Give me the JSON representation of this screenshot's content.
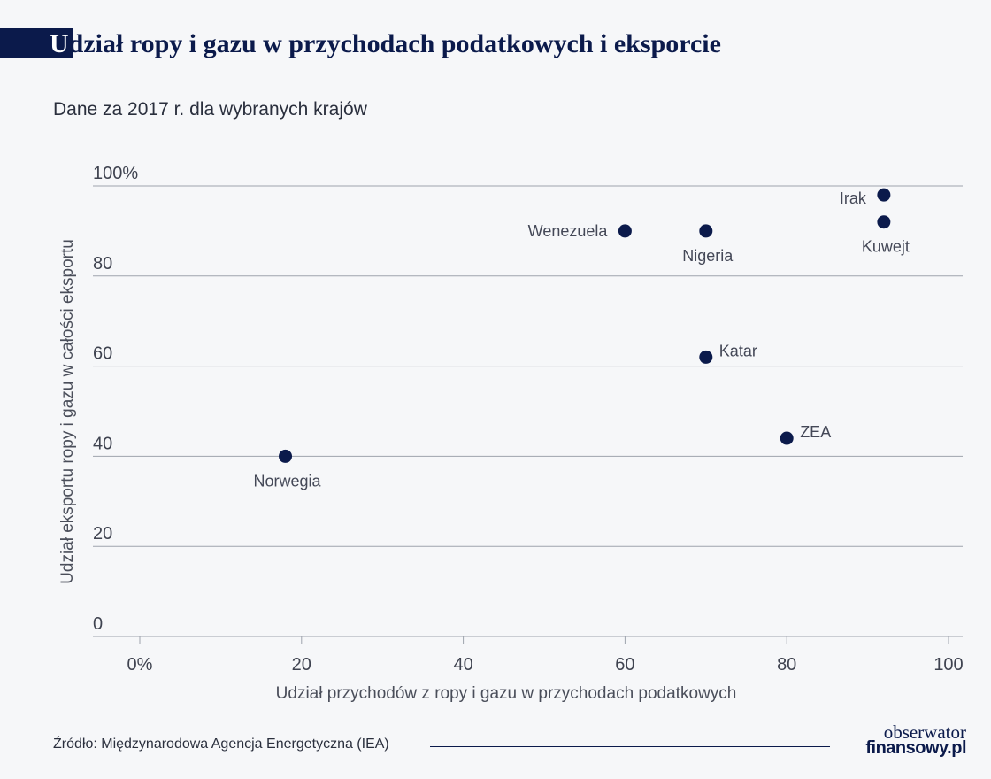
{
  "header": {
    "title_first": "U",
    "title_rest": "dział ropy i gazu w przychodach podatkowych i eksporcie",
    "subtitle": "Dane za 2017 r. dla wybranych krajów"
  },
  "chart_data": {
    "type": "scatter",
    "title": "Udział ropy i gazu w przychodach podatkowych i eksporcie",
    "subtitle": "Dane za 2017 r. dla wybranych krajów",
    "xlabel": "Udział przychodów z ropy i gazu w przychodach podatkowych",
    "ylabel": "Udział eksportu ropy i gazu w całości eksportu",
    "xlim": [
      0,
      100
    ],
    "ylim": [
      0,
      100
    ],
    "grid": "horizontal",
    "x_ticks": [
      {
        "value": 0,
        "label": "0%"
      },
      {
        "value": 20,
        "label": "20"
      },
      {
        "value": 40,
        "label": "40"
      },
      {
        "value": 60,
        "label": "60"
      },
      {
        "value": 80,
        "label": "80"
      },
      {
        "value": 100,
        "label": "100"
      }
    ],
    "y_ticks": [
      {
        "value": 0,
        "label": "0"
      },
      {
        "value": 20,
        "label": "20"
      },
      {
        "value": 40,
        "label": "40"
      },
      {
        "value": 60,
        "label": "60"
      },
      {
        "value": 80,
        "label": "80"
      },
      {
        "value": 100,
        "label": "100%"
      }
    ],
    "points": [
      {
        "label": "Irak",
        "x": 92,
        "y": 98,
        "label_pos": "left"
      },
      {
        "label": "Kuwejt",
        "x": 92,
        "y": 92,
        "label_pos": "below"
      },
      {
        "label": "Wenezuela",
        "x": 60,
        "y": 90,
        "label_pos": "left"
      },
      {
        "label": "Nigeria",
        "x": 70,
        "y": 90,
        "label_pos": "below"
      },
      {
        "label": "Katar",
        "x": 70,
        "y": 62,
        "label_pos": "right"
      },
      {
        "label": "ZEA",
        "x": 80,
        "y": 44,
        "label_pos": "right"
      },
      {
        "label": "Norwegia",
        "x": 18,
        "y": 40,
        "label_pos": "below"
      }
    ],
    "point_color": "#0b1a4b"
  },
  "footer": {
    "source": "Źródło: Międzynarodowa Agencja Energetyczna (IEA)",
    "logo_line1": "obserwator",
    "logo_line2": "finansowy.pl"
  }
}
